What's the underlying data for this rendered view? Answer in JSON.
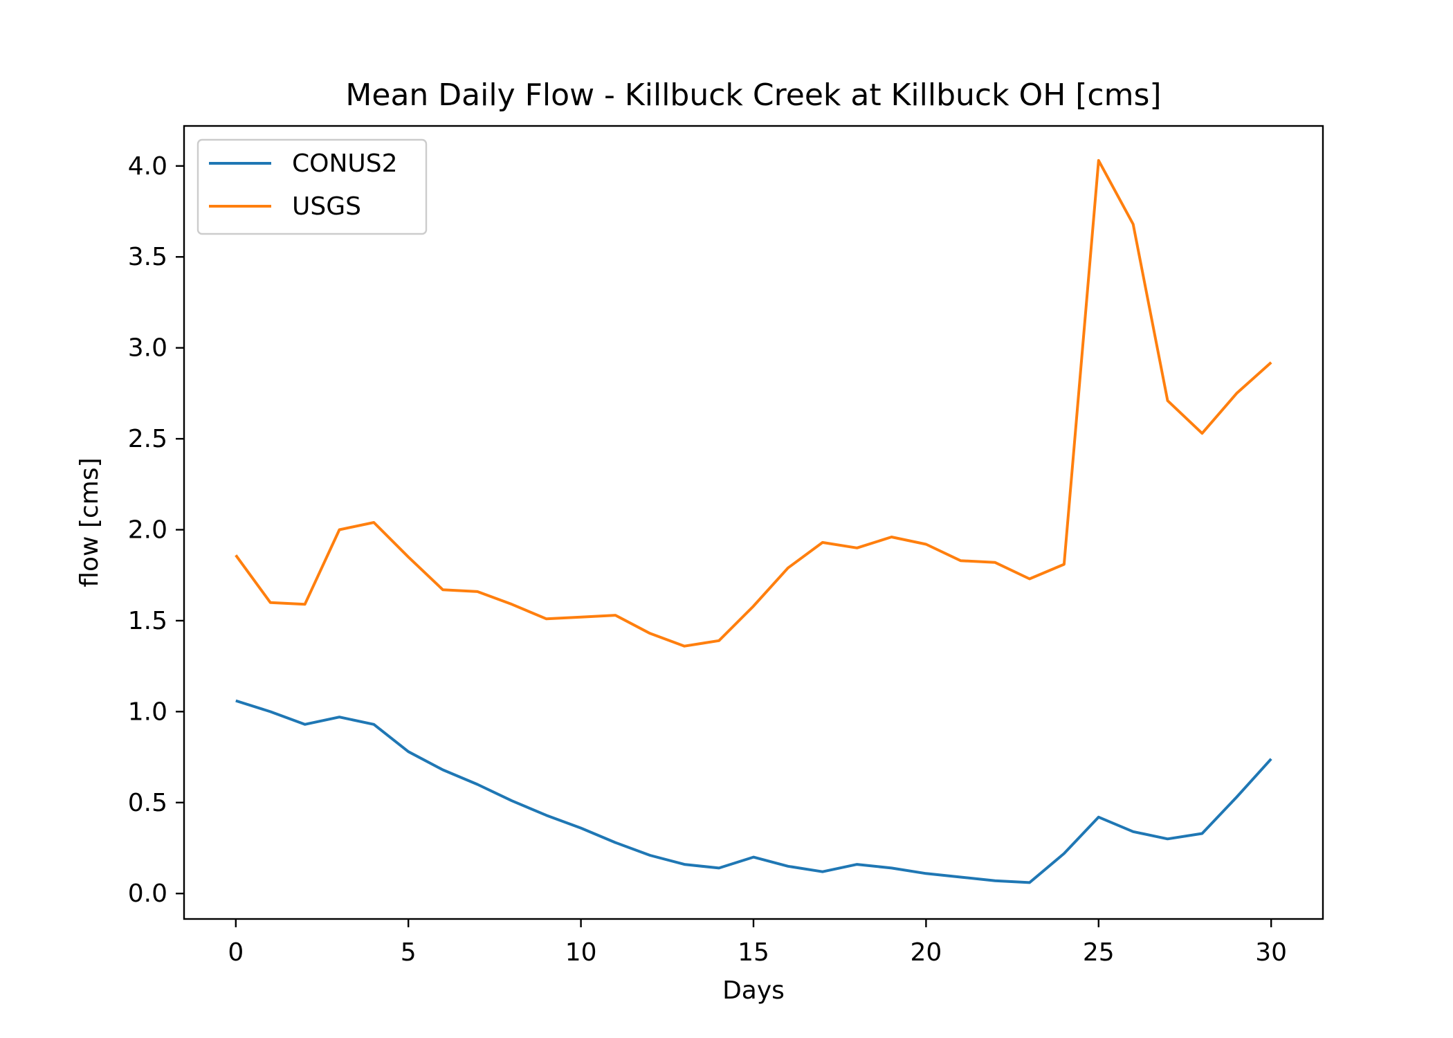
{
  "chart_data": {
    "type": "line",
    "title": "Mean Daily Flow - Killbuck Creek at Killbuck OH [cms]",
    "xlabel": "Days",
    "ylabel": "flow [cms]",
    "xlim": [
      -1.5,
      31.5
    ],
    "ylim": [
      -0.14,
      4.22
    ],
    "xticks": [
      0,
      5,
      10,
      15,
      20,
      25,
      30
    ],
    "xtick_labels": [
      "0",
      "5",
      "10",
      "15",
      "20",
      "25",
      "30"
    ],
    "yticks": [
      0.0,
      0.5,
      1.0,
      1.5,
      2.0,
      2.5,
      3.0,
      3.5,
      4.0
    ],
    "ytick_labels": [
      "0.0",
      "0.5",
      "1.0",
      "1.5",
      "2.0",
      "2.5",
      "3.0",
      "3.5",
      "4.0"
    ],
    "grid": false,
    "legend_position": "top-left",
    "x": [
      0,
      1,
      2,
      3,
      4,
      5,
      6,
      7,
      8,
      9,
      10,
      11,
      12,
      13,
      14,
      15,
      16,
      17,
      18,
      19,
      20,
      21,
      22,
      23,
      24,
      25,
      26,
      27,
      28,
      29,
      30
    ],
    "series": [
      {
        "name": "CONUS2",
        "color": "#1f77b4",
        "values": [
          1.06,
          1.0,
          0.93,
          0.97,
          0.93,
          0.78,
          0.68,
          0.6,
          0.51,
          0.43,
          0.36,
          0.28,
          0.21,
          0.16,
          0.14,
          0.2,
          0.15,
          0.12,
          0.16,
          0.14,
          0.11,
          0.09,
          0.07,
          0.06,
          0.22,
          0.42,
          0.34,
          0.3,
          0.33,
          0.53,
          0.74
        ]
      },
      {
        "name": "USGS",
        "color": "#ff7f0e",
        "values": [
          1.86,
          1.6,
          1.59,
          2.0,
          2.04,
          1.85,
          1.67,
          1.66,
          1.59,
          1.51,
          1.52,
          1.53,
          1.43,
          1.36,
          1.39,
          1.58,
          1.79,
          1.93,
          1.9,
          1.96,
          1.92,
          1.83,
          1.82,
          1.73,
          1.81,
          4.03,
          3.68,
          2.71,
          2.53,
          2.75,
          2.92
        ]
      }
    ]
  }
}
